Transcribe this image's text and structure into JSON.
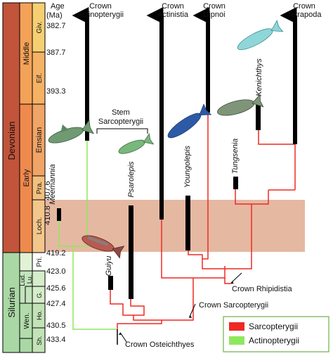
{
  "age_header": [
    "Age",
    "(Ma)"
  ],
  "ages": [
    {
      "label": "382.7",
      "value": 382.7
    },
    {
      "label": "387.7",
      "value": 387.7
    },
    {
      "label": "393.3",
      "value": 393.3
    },
    {
      "label": "407.6",
      "value": 407.6
    },
    {
      "label": "410.8",
      "value": 410.8
    },
    {
      "label": "419.2",
      "value": 419.2
    },
    {
      "label": "423.0",
      "value": 423.0
    },
    {
      "label": "425.6",
      "value": 425.6
    },
    {
      "label": "427.4",
      "value": 427.4
    },
    {
      "label": "430.5",
      "value": 430.5
    },
    {
      "label": "433.4",
      "value": 433.4
    }
  ],
  "periods": [
    {
      "name": "Devonian",
      "color": "#c1543a"
    },
    {
      "name": "Silurian",
      "color": "#a9d8a5"
    }
  ],
  "epochs": [
    {
      "name": "Middle",
      "color": "#f3a258"
    },
    {
      "name": "Early",
      "color": "#ee8a4e"
    },
    {
      "name": "Lu.",
      "color": "#c3e4bd"
    },
    {
      "name": "Wen.",
      "color": "#b3dcac"
    }
  ],
  "stages": [
    {
      "name": "Giv.",
      "color": "#f7cf73"
    },
    {
      "name": "Eif.",
      "color": "#f5b265"
    },
    {
      "name": "Emsian",
      "color": "#f0a466"
    },
    {
      "name": "Pra.",
      "color": "#f4bf7c"
    },
    {
      "name": "Loch.",
      "color": "#f3c68c"
    },
    {
      "name": "Pri.",
      "color": "#e2f2d6"
    },
    {
      "name": "Lud.",
      "color": "#d6edc9"
    },
    {
      "name": "G.",
      "color": "#ccebc1"
    },
    {
      "name": "Ho.",
      "color": "#c2e3b6"
    },
    {
      "name": "Sh.",
      "color": "#b6dcaa"
    }
  ],
  "taxa": {
    "meemannia": "Meemannia",
    "psarolepis": "Psarolepis",
    "guiyu": "Guiyu",
    "youngolepis": "Youngolepis",
    "tungsenia": "Tungsenia",
    "kenichthys": "Kenichthys"
  },
  "crown_labels": {
    "actinopterygii": [
      "Crown",
      "Actinopterygii"
    ],
    "actinistia": [
      "Crown",
      "Actinistia"
    ],
    "dipnoi": [
      "Crown",
      "Dipnoi"
    ],
    "tetrapoda": [
      "Crown",
      "Tetrapoda"
    ]
  },
  "stem_label": [
    "Stem",
    "Sarcopterygii"
  ],
  "node_labels": {
    "rhipidistia": "Crown Rhipidistia",
    "sarcopterygii": "Crown Sarcopterygii",
    "osteichthyes": "Crown Osteichthyes"
  },
  "legend": [
    {
      "label": "Sarcopterygii",
      "color": "#ee2a24"
    },
    {
      "label": "Actinopterygii",
      "color": "#8fe85c"
    }
  ],
  "highlight_color": "#e0ab92",
  "icons": [
    "fish-icon"
  ]
}
